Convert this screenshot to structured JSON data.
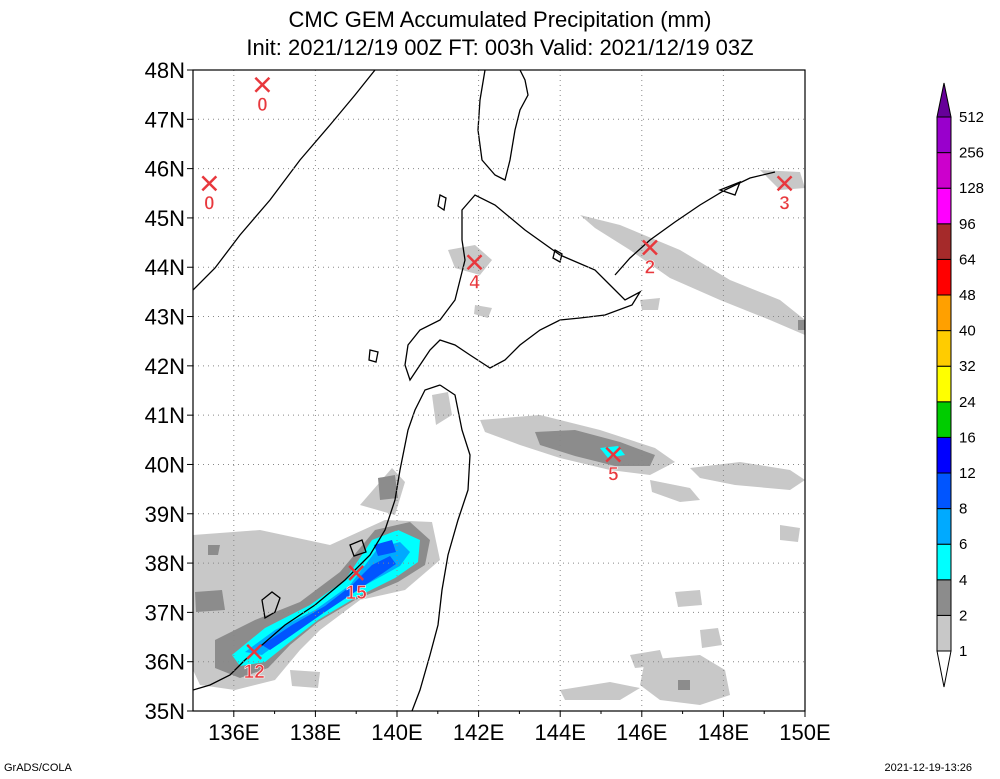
{
  "header": {
    "title": "CMC GEM Accumulated Precipitation (mm)",
    "subtitle": "Init: 2021/12/19 00Z  FT: 003h  Valid: 2021/12/19 03Z"
  },
  "map": {
    "lon_range": [
      135,
      150
    ],
    "lat_range": [
      35,
      48
    ],
    "lat_ticks": [
      "35N",
      "36N",
      "37N",
      "38N",
      "39N",
      "40N",
      "41N",
      "42N",
      "43N",
      "44N",
      "45N",
      "46N",
      "47N",
      "48N"
    ],
    "lon_ticks": [
      "136E",
      "138E",
      "140E",
      "142E",
      "144E",
      "146E",
      "148E",
      "150E"
    ],
    "grid": true
  },
  "legend": {
    "levels": [
      "1",
      "2",
      "4",
      "6",
      "8",
      "12",
      "16",
      "24",
      "32",
      "40",
      "48",
      "64",
      "96",
      "128",
      "256",
      "512"
    ],
    "colors": [
      "#ffffff",
      "#c8c8c8",
      "#8c8c8c",
      "#00ffff",
      "#00aaff",
      "#0055ff",
      "#0000ff",
      "#00cc00",
      "#ffff00",
      "#ffcc00",
      "#ffa000",
      "#ff0000",
      "#a52a2a",
      "#ff00ff",
      "#cc00cc",
      "#9900cc",
      "#660099"
    ]
  },
  "stations": [
    {
      "lon": 136.7,
      "lat": 47.7,
      "value": "0"
    },
    {
      "lon": 135.4,
      "lat": 45.7,
      "value": "0"
    },
    {
      "lon": 141.9,
      "lat": 44.1,
      "value": "4"
    },
    {
      "lon": 146.2,
      "lat": 44.4,
      "value": "2"
    },
    {
      "lon": 149.5,
      "lat": 45.7,
      "value": "3"
    },
    {
      "lon": 145.3,
      "lat": 40.2,
      "value": "5"
    },
    {
      "lon": 139.0,
      "lat": 37.8,
      "value": "15"
    },
    {
      "lon": 136.5,
      "lat": 36.2,
      "value": "12"
    }
  ],
  "footer": {
    "credit": "GrADS/COLA",
    "timestamp": "2021-12-19-13:26"
  }
}
